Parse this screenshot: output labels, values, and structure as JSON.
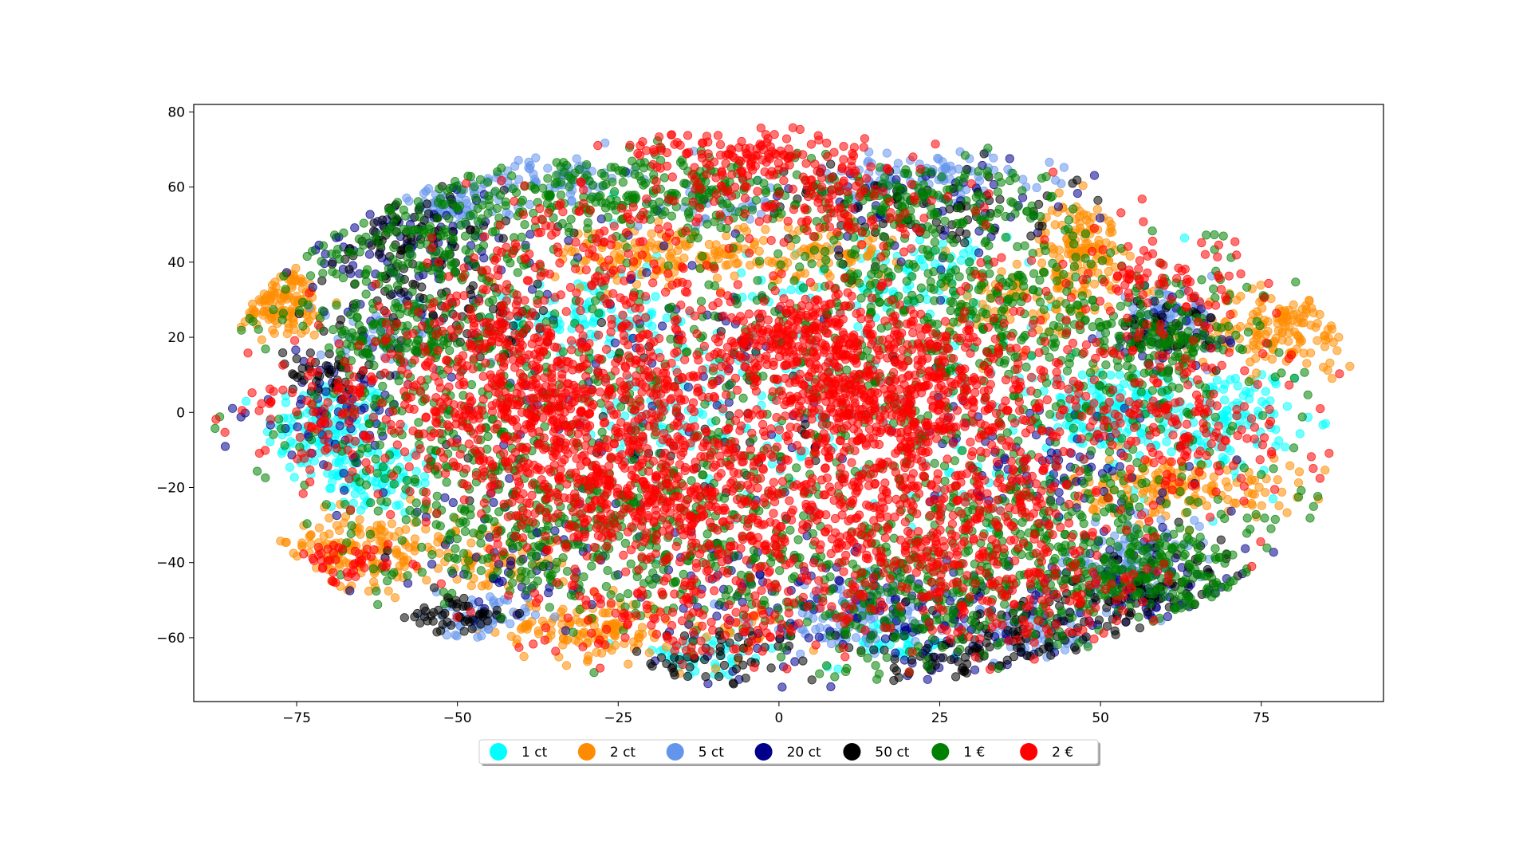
{
  "chart_data": {
    "type": "scatter",
    "title": "",
    "xlabel": "",
    "ylabel": "",
    "xlim": [
      -91,
      94
    ],
    "ylim": [
      -77,
      82
    ],
    "grid": false,
    "legend_placement": "bottom-center",
    "x_ticks": [
      -75,
      -50,
      -25,
      0,
      25,
      50,
      75
    ],
    "y_ticks": [
      -60,
      -40,
      -20,
      0,
      20,
      40,
      60,
      80
    ],
    "x_tick_labels": [
      "−75",
      "−50",
      "−25",
      "0",
      "25",
      "50",
      "75"
    ],
    "y_tick_labels": [
      "−60",
      "−40",
      "−20",
      "0",
      "20",
      "40",
      "60",
      "80"
    ],
    "marker_alpha": 0.55,
    "series": [
      {
        "name": "1 ct",
        "color": "#00ffff",
        "clusters": [
          [
            -70,
            -5,
            5,
            7,
            130
          ],
          [
            -62,
            -18,
            5,
            5,
            80
          ],
          [
            -30,
            25,
            6,
            5,
            90
          ],
          [
            -18,
            0,
            6,
            5,
            40
          ],
          [
            20,
            35,
            8,
            6,
            90
          ],
          [
            52,
            0,
            5,
            5,
            150
          ],
          [
            70,
            -2,
            5,
            7,
            110
          ],
          [
            -12,
            -65,
            6,
            3,
            40
          ],
          [
            18,
            -62,
            5,
            3,
            30
          ],
          [
            -5,
            10,
            20,
            20,
            120
          ],
          [
            30,
            -5,
            20,
            15,
            80
          ]
        ]
      },
      {
        "name": "2 ct",
        "color": "#ff8c00",
        "clusters": [
          [
            -78,
            30,
            4,
            5,
            120
          ],
          [
            -66,
            -36,
            8,
            5,
            150
          ],
          [
            -45,
            -40,
            5,
            4,
            60
          ],
          [
            -30,
            -58,
            7,
            4,
            130
          ],
          [
            -15,
            42,
            10,
            4,
            160
          ],
          [
            8,
            42,
            5,
            4,
            60
          ],
          [
            47,
            46,
            3,
            5,
            110
          ],
          [
            40,
            30,
            7,
            7,
            90
          ],
          [
            63,
            -20,
            9,
            4,
            150
          ],
          [
            78,
            22,
            7,
            5,
            150
          ],
          [
            -5,
            -60,
            4,
            4,
            20
          ]
        ]
      },
      {
        "name": "5 ct",
        "color": "#6495ed",
        "clusters": [
          [
            -35,
            63,
            6,
            3,
            70
          ],
          [
            -52,
            55,
            5,
            3,
            60
          ],
          [
            -60,
            20,
            6,
            5,
            60
          ],
          [
            -47,
            -55,
            4,
            3,
            60
          ],
          [
            22,
            63,
            10,
            3,
            100
          ],
          [
            12,
            -55,
            8,
            5,
            120
          ],
          [
            55,
            -40,
            5,
            5,
            100
          ],
          [
            60,
            25,
            4,
            4,
            60
          ],
          [
            -10,
            55,
            6,
            3,
            40
          ],
          [
            40,
            -60,
            5,
            4,
            60
          ]
        ]
      },
      {
        "name": "20 ct",
        "color": "#00008b",
        "clusters": [
          [
            -58,
            45,
            8,
            8,
            90
          ],
          [
            -70,
            0,
            6,
            8,
            70
          ],
          [
            -40,
            -40,
            8,
            8,
            60
          ],
          [
            0,
            -50,
            12,
            10,
            100
          ],
          [
            25,
            -55,
            10,
            8,
            100
          ],
          [
            45,
            -15,
            10,
            10,
            90
          ],
          [
            60,
            -50,
            8,
            8,
            90
          ],
          [
            -20,
            10,
            25,
            20,
            120
          ],
          [
            25,
            55,
            12,
            6,
            60
          ],
          [
            60,
            20,
            5,
            5,
            40
          ]
        ]
      },
      {
        "name": "50 ct",
        "color": "#000000",
        "clusters": [
          [
            -58,
            45,
            8,
            8,
            90
          ],
          [
            -50,
            25,
            8,
            5,
            60
          ],
          [
            -70,
            10,
            4,
            4,
            40
          ],
          [
            -50,
            -55,
            4,
            3,
            50
          ],
          [
            -10,
            -65,
            8,
            4,
            50
          ],
          [
            25,
            -65,
            8,
            4,
            50
          ],
          [
            40,
            -60,
            8,
            6,
            60
          ],
          [
            60,
            -50,
            10,
            8,
            80
          ],
          [
            60,
            22,
            4,
            4,
            50
          ],
          [
            20,
            55,
            12,
            6,
            70
          ],
          [
            -10,
            0,
            25,
            20,
            80
          ]
        ]
      },
      {
        "name": "1 €",
        "color": "#008000",
        "clusters": [
          [
            -58,
            45,
            10,
            10,
            160
          ],
          [
            -58,
            20,
            8,
            6,
            120
          ],
          [
            -30,
            58,
            12,
            6,
            180
          ],
          [
            -40,
            -30,
            12,
            10,
            200
          ],
          [
            20,
            55,
            12,
            6,
            180
          ],
          [
            -10,
            60,
            8,
            5,
            80
          ],
          [
            20,
            -50,
            15,
            10,
            260
          ],
          [
            45,
            -35,
            15,
            12,
            250
          ],
          [
            60,
            -45,
            8,
            8,
            140
          ],
          [
            50,
            20,
            15,
            15,
            200
          ],
          [
            0,
            0,
            40,
            28,
            700
          ],
          [
            30,
            30,
            15,
            10,
            180
          ],
          [
            -15,
            -35,
            12,
            10,
            150
          ],
          [
            -50,
            -5,
            10,
            15,
            150
          ],
          [
            60,
            20,
            5,
            5,
            80
          ]
        ]
      },
      {
        "name": "2 €",
        "color": "#ff0000",
        "clusters": [
          [
            -35,
            0,
            12,
            10,
            400
          ],
          [
            -22,
            -25,
            12,
            8,
            320
          ],
          [
            -5,
            10,
            18,
            15,
            300
          ],
          [
            18,
            3,
            10,
            10,
            380
          ],
          [
            5,
            20,
            8,
            6,
            200
          ],
          [
            -5,
            68,
            10,
            5,
            160
          ],
          [
            10,
            -35,
            15,
            12,
            260
          ],
          [
            30,
            -25,
            12,
            12,
            200
          ],
          [
            -45,
            20,
            10,
            10,
            160
          ],
          [
            -65,
            0,
            10,
            8,
            120
          ],
          [
            45,
            10,
            18,
            18,
            220
          ],
          [
            -30,
            45,
            10,
            8,
            120
          ],
          [
            10,
            55,
            10,
            6,
            100
          ],
          [
            40,
            -50,
            12,
            8,
            120
          ],
          [
            -15,
            -55,
            10,
            6,
            100
          ],
          [
            65,
            -5,
            8,
            8,
            90
          ],
          [
            60,
            35,
            6,
            5,
            60
          ],
          [
            -70,
            -40,
            5,
            3,
            40
          ],
          [
            0,
            -10,
            35,
            25,
            500
          ]
        ]
      }
    ]
  }
}
